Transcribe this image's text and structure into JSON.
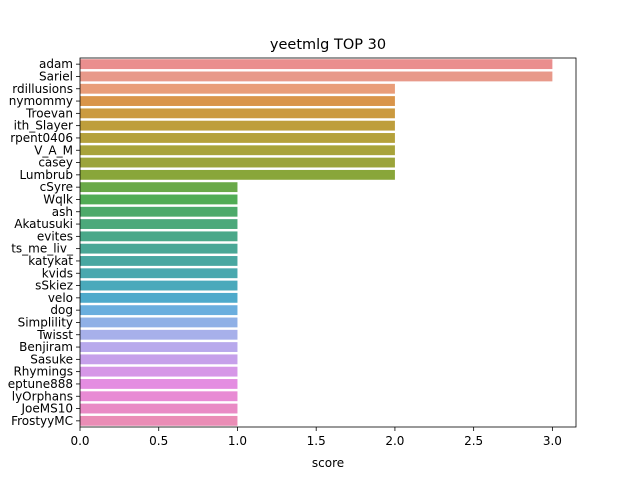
{
  "chart_data": {
    "type": "bar",
    "orientation": "horizontal",
    "title": "yeetmlg TOP 30",
    "xlabel": "score",
    "ylabel": "",
    "xlim": [
      0,
      3.15
    ],
    "xticks": [
      "0.0",
      "0.5",
      "1.0",
      "1.5",
      "2.0",
      "2.5",
      "3.0"
    ],
    "grid": false,
    "categories": [
      "adam",
      "Sariel",
      "rdillusions",
      "nymommy",
      "Troevan",
      "ith_Slayer",
      "rpent0406",
      "V_A_M",
      "casey",
      "Lumbrub",
      "cSyre",
      "Wqlk",
      "ash",
      "Akatusuki",
      "evites",
      "ts_me_liv_",
      "katykat",
      "kvids",
      "sSkiez",
      "velo",
      "dog",
      "Simplility",
      "Twisst",
      "Benjiram",
      "Sasuke",
      "Rhymings",
      "eptune888",
      "lyOrphans",
      "JoeMS10",
      "FrostyyMC"
    ],
    "values": [
      3,
      3,
      2,
      2,
      2,
      2,
      2,
      2,
      2,
      2,
      1,
      1,
      1,
      1,
      1,
      1,
      1,
      1,
      1,
      1,
      1,
      1,
      1,
      1,
      1,
      1,
      1,
      1,
      1,
      1
    ],
    "colors": [
      "#ea8e8e",
      "#e8998a",
      "#e99d79",
      "#d9954a",
      "#cb9a3f",
      "#be9e3c",
      "#b5a13b",
      "#a8a33a",
      "#9ba43a",
      "#89a63a",
      "#6aa949",
      "#51ac55",
      "#4daa6a",
      "#4ca97b",
      "#4aa889",
      "#49a796",
      "#48a7a1",
      "#49a8ae",
      "#4aa9bb",
      "#4eaacb",
      "#6aaede",
      "#8fb0e6",
      "#a7b0ea",
      "#b8a9ec",
      "#c6a0ea",
      "#d697e7",
      "#e48de1",
      "#e88bd4",
      "#e98bc5",
      "#ea8db6"
    ]
  }
}
